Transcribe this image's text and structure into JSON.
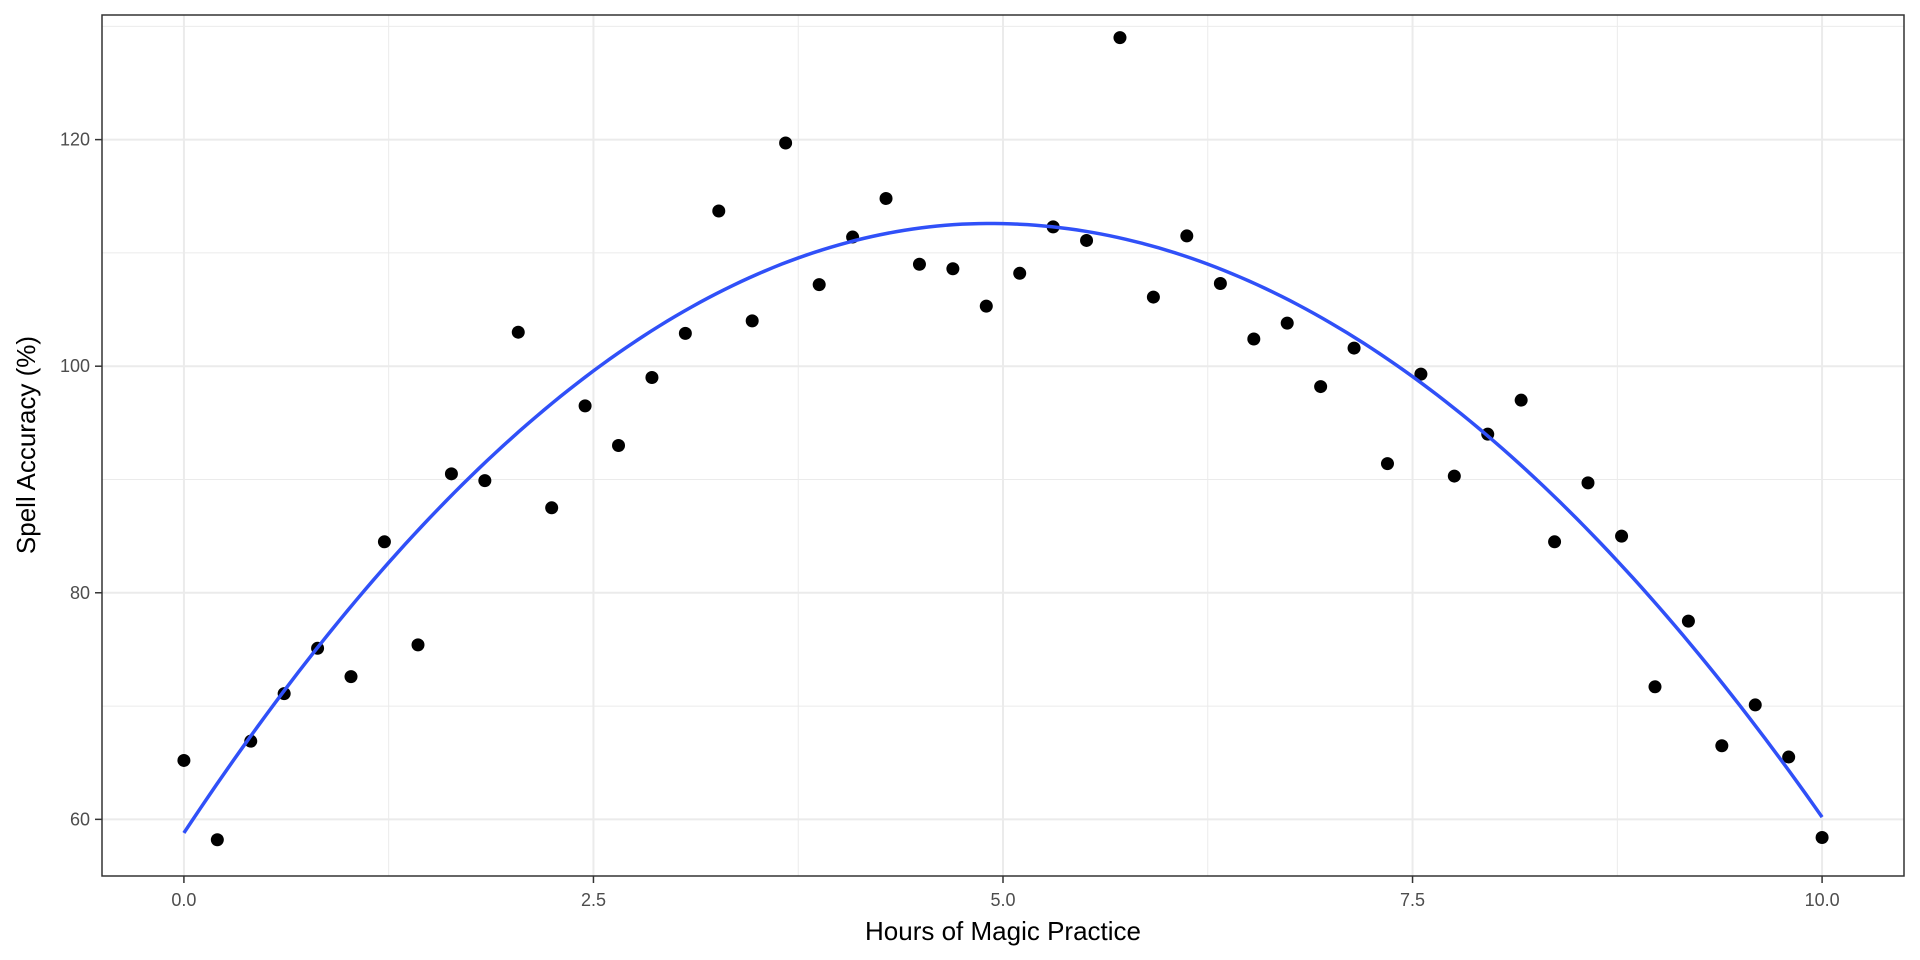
{
  "chart_data": {
    "type": "scatter",
    "title": "",
    "xlabel": "Hours of Magic Practice",
    "ylabel": "Spell Accuracy (%)",
    "xlim": [
      -0.5,
      10.5
    ],
    "ylim": [
      55,
      131
    ],
    "x_ticks": [
      0.0,
      2.5,
      5.0,
      7.5,
      10.0
    ],
    "x_tick_labels": [
      "0.0",
      "2.5",
      "5.0",
      "7.5",
      "10.0"
    ],
    "y_ticks": [
      60,
      80,
      100,
      120
    ],
    "y_tick_labels": [
      "60",
      "80",
      "100",
      "120"
    ],
    "grid": true,
    "legend": "none",
    "colors": {
      "points": "#000000",
      "fit": "#3050f8",
      "grid": "#ebebeb",
      "border": "#333333"
    },
    "points": {
      "x": [
        0.0,
        0.204,
        0.408,
        0.612,
        0.816,
        1.02,
        1.224,
        1.429,
        1.633,
        1.837,
        2.041,
        2.245,
        2.449,
        2.653,
        2.857,
        3.061,
        3.265,
        3.469,
        3.673,
        3.878,
        4.082,
        4.286,
        4.49,
        4.694,
        4.898,
        5.102,
        5.306,
        5.51,
        5.714,
        5.918,
        6.122,
        6.327,
        6.531,
        6.735,
        6.939,
        7.143,
        7.347,
        7.551,
        7.755,
        7.959,
        8.163,
        8.367,
        8.571,
        8.776,
        8.98,
        9.184,
        9.388,
        9.592,
        9.796,
        10.0
      ],
      "y": [
        65.2,
        58.2,
        66.9,
        71.1,
        75.1,
        72.6,
        84.5,
        75.4,
        90.5,
        89.9,
        103.0,
        87.5,
        96.5,
        93.0,
        99.0,
        102.9,
        113.7,
        104.0,
        119.7,
        107.2,
        111.4,
        114.8,
        109.0,
        108.6,
        105.3,
        108.2,
        112.3,
        111.1,
        129.0,
        106.1,
        111.5,
        107.3,
        102.4,
        103.8,
        98.2,
        101.6,
        91.4,
        99.3,
        90.3,
        94.0,
        97.0,
        84.5,
        89.7,
        85.0,
        71.7,
        77.5,
        66.5,
        70.1,
        65.5,
        58.4
      ]
    },
    "fit": {
      "type": "quadratic",
      "x_range": [
        0.0,
        10.0
      ],
      "y_start": 58.8,
      "y_peak": 112.6,
      "x_peak": 4.92,
      "y_end": 60.2
    }
  }
}
